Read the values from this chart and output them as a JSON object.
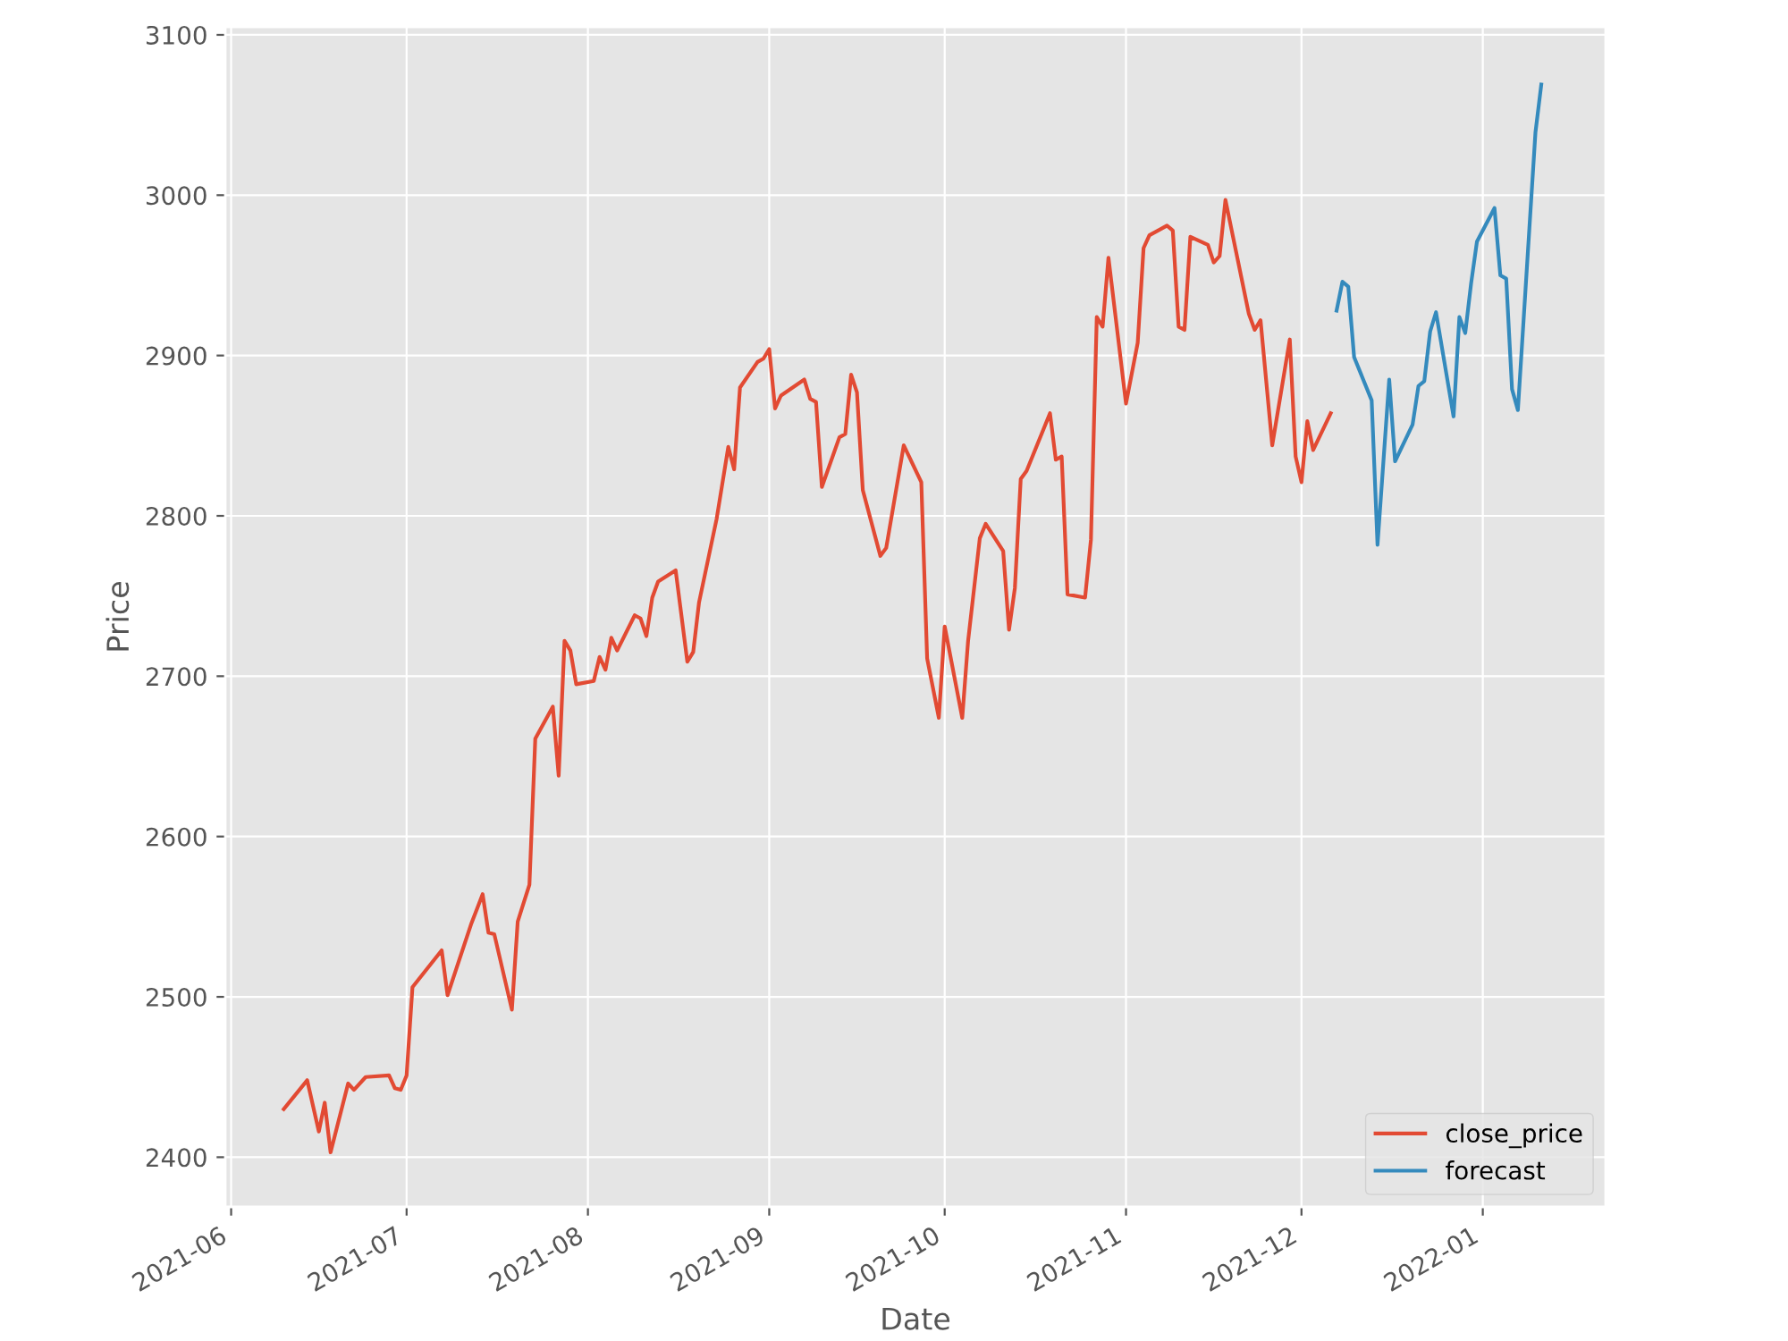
{
  "chart_data": {
    "type": "line",
    "xlabel": "Date",
    "ylabel": "Price",
    "xlim": [
      "2021-05-31",
      "2022-01-22"
    ],
    "ylim": [
      2369,
      3105
    ],
    "xticks": [
      "2021-06",
      "2021-07",
      "2021-08",
      "2021-09",
      "2021-10",
      "2021-11",
      "2021-12",
      "2022-01"
    ],
    "yticks": [
      2400,
      2500,
      2600,
      2700,
      2800,
      2900,
      3000,
      3100
    ],
    "grid": true,
    "legend": "bottom right",
    "series": [
      {
        "name": "close_price",
        "color": "#e24a33",
        "x": [
          "2021-06-10",
          "2021-06-14",
          "2021-06-16",
          "2021-06-17",
          "2021-06-18",
          "2021-06-21",
          "2021-06-22",
          "2021-06-24",
          "2021-06-28",
          "2021-06-29",
          "2021-06-30",
          "2021-07-01",
          "2021-07-02",
          "2021-07-07",
          "2021-07-08",
          "2021-07-12",
          "2021-07-14",
          "2021-07-15",
          "2021-07-16",
          "2021-07-19",
          "2021-07-20",
          "2021-07-22",
          "2021-07-23",
          "2021-07-26",
          "2021-07-27",
          "2021-07-28",
          "2021-07-29",
          "2021-07-30",
          "2021-08-02",
          "2021-08-03",
          "2021-08-04",
          "2021-08-05",
          "2021-08-06",
          "2021-08-09",
          "2021-08-10",
          "2021-08-11",
          "2021-08-12",
          "2021-08-13",
          "2021-08-16",
          "2021-08-18",
          "2021-08-19",
          "2021-08-20",
          "2021-08-23",
          "2021-08-25",
          "2021-08-26",
          "2021-08-27",
          "2021-08-30",
          "2021-08-31",
          "2021-09-01",
          "2021-09-02",
          "2021-09-03",
          "2021-09-07",
          "2021-09-08",
          "2021-09-09",
          "2021-09-10",
          "2021-09-13",
          "2021-09-14",
          "2021-09-15",
          "2021-09-16",
          "2021-09-17",
          "2021-09-20",
          "2021-09-21",
          "2021-09-24",
          "2021-09-27",
          "2021-09-28",
          "2021-09-30",
          "2021-10-01",
          "2021-10-04",
          "2021-10-05",
          "2021-10-07",
          "2021-10-08",
          "2021-10-11",
          "2021-10-12",
          "2021-10-13",
          "2021-10-14",
          "2021-10-15",
          "2021-10-19",
          "2021-10-20",
          "2021-10-21",
          "2021-10-22",
          "2021-10-25",
          "2021-10-26",
          "2021-10-27",
          "2021-10-28",
          "2021-10-29",
          "2021-11-01",
          "2021-11-03",
          "2021-11-04",
          "2021-11-05",
          "2021-11-08",
          "2021-11-09",
          "2021-11-10",
          "2021-11-11",
          "2021-11-12",
          "2021-11-15",
          "2021-11-16",
          "2021-11-17",
          "2021-11-18",
          "2021-11-22",
          "2021-11-23",
          "2021-11-24",
          "2021-11-26",
          "2021-11-29",
          "2021-11-30",
          "2021-12-01",
          "2021-12-02",
          "2021-12-03",
          "2021-12-06"
        ],
        "values": [
          2430,
          2448,
          2416,
          2434,
          2403,
          2446,
          2442,
          2450,
          2451,
          2443,
          2442,
          2451,
          2506,
          2529,
          2501,
          2545,
          2564,
          2540,
          2539,
          2492,
          2547,
          2570,
          2661,
          2681,
          2638,
          2722,
          2716,
          2695,
          2697,
          2712,
          2704,
          2724,
          2716,
          2738,
          2736,
          2725,
          2749,
          2759,
          2766,
          2709,
          2715,
          2746,
          2798,
          2843,
          2829,
          2880,
          2896,
          2898,
          2904,
          2867,
          2875,
          2885,
          2873,
          2871,
          2818,
          2849,
          2851,
          2888,
          2877,
          2816,
          2775,
          2780,
          2844,
          2821,
          2711,
          2674,
          2731,
          2674,
          2722,
          2786,
          2795,
          2778,
          2729,
          2755,
          2823,
          2828,
          2864,
          2835,
          2837,
          2751,
          2749,
          2785,
          2924,
          2918,
          2961,
          2870,
          2908,
          2967,
          2975,
          2981,
          2978,
          2918,
          2916,
          2974,
          2969,
          2958,
          2962,
          2997,
          2926,
          2916,
          2922,
          2844,
          2910,
          2837,
          2821,
          2859,
          2841,
          2864
        ]
      },
      {
        "name": "forecast",
        "color": "#348abd",
        "x": [
          "2021-12-07",
          "2021-12-08",
          "2021-12-09",
          "2021-12-10",
          "2021-12-13",
          "2021-12-14",
          "2021-12-16",
          "2021-12-17",
          "2021-12-20",
          "2021-12-21",
          "2021-12-22",
          "2021-12-23",
          "2021-12-24",
          "2021-12-27",
          "2021-12-28",
          "2021-12-29",
          "2021-12-30",
          "2021-12-31",
          "2022-01-03",
          "2022-01-04",
          "2022-01-05",
          "2022-01-06",
          "2022-01-07",
          "2022-01-10",
          "2022-01-11"
        ],
        "values": [
          2928,
          2946,
          2943,
          2899,
          2872,
          2782,
          2885,
          2834,
          2857,
          2881,
          2884,
          2915,
          2927,
          2862,
          2924,
          2914,
          2945,
          2971,
          2992,
          2950,
          2948,
          2879,
          2866,
          3039,
          3069
        ]
      }
    ]
  }
}
